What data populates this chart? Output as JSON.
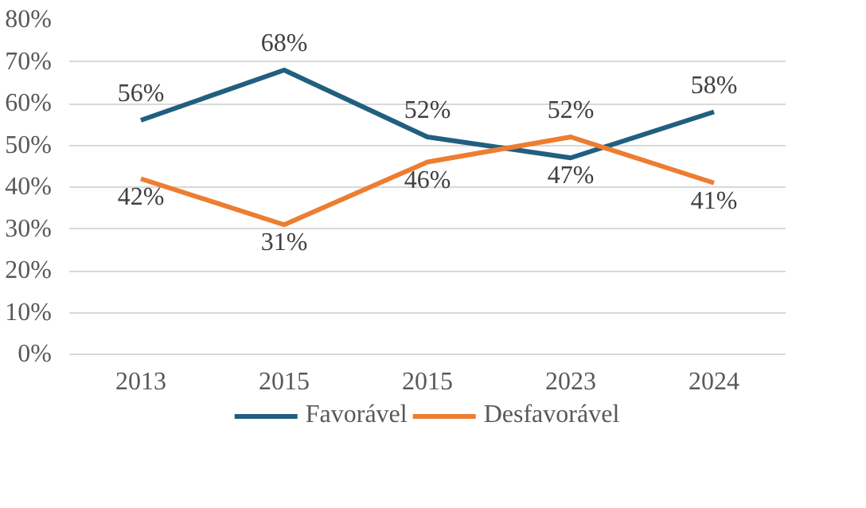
{
  "chart_data": {
    "type": "line",
    "categories": [
      "2013",
      "2015",
      "2015",
      "2023",
      "2024"
    ],
    "series": [
      {
        "name": "Favorável",
        "color": "#215f7f",
        "values": [
          56,
          68,
          52,
          47,
          58
        ],
        "value_labels": [
          "56%",
          "68%",
          "52%",
          "47%",
          "58%"
        ]
      },
      {
        "name": "Desfavorável",
        "color": "#ed7d31",
        "values": [
          42,
          31,
          46,
          52,
          41
        ],
        "value_labels": [
          "42%",
          "31%",
          "46%",
          "52%",
          "41%"
        ]
      }
    ],
    "ylim": [
      0,
      80
    ],
    "yticks": [
      {
        "value": 0,
        "label": "0%"
      },
      {
        "value": 10,
        "label": "10%"
      },
      {
        "value": 20,
        "label": "20%"
      },
      {
        "value": 30,
        "label": "30%"
      },
      {
        "value": 40,
        "label": "40%"
      },
      {
        "value": 50,
        "label": "50%"
      },
      {
        "value": 60,
        "label": "60%"
      },
      {
        "value": 70,
        "label": "70%"
      },
      {
        "value": 80,
        "label": "80%"
      }
    ],
    "grid": "y",
    "legend": "bottom",
    "marker": "none",
    "line_style": "solid"
  }
}
